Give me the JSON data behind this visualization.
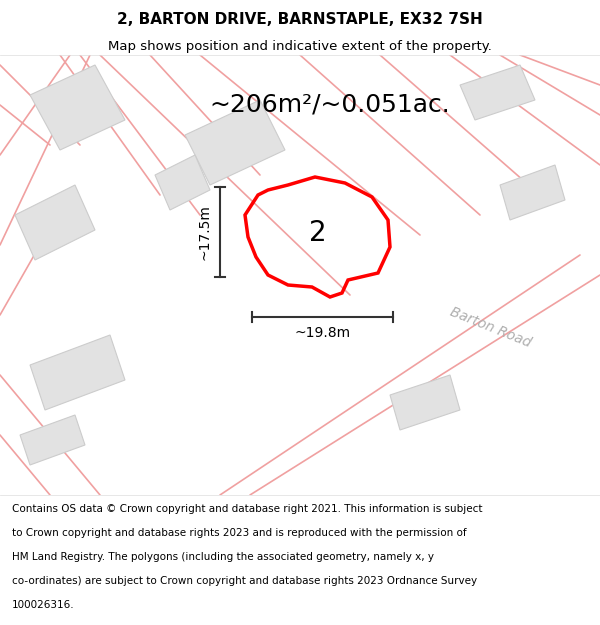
{
  "title": "2, BARTON DRIVE, BARNSTAPLE, EX32 7SH",
  "subtitle": "Map shows position and indicative extent of the property.",
  "area_text": "~206m²/~0.051ac.",
  "dim_width": "~19.8m",
  "dim_height": "~17.5m",
  "plot_number": "2",
  "road_label": "Barton Road",
  "map_bg_color": "#f5f4f2",
  "building_fill": "#e2e2e2",
  "building_edge": "#cccccc",
  "road_line_color": "#f0a0a0",
  "title_fontsize": 11,
  "subtitle_fontsize": 9.5,
  "area_fontsize": 18,
  "dim_fontsize": 10,
  "plot_label_fontsize": 20,
  "road_label_fontsize": 10,
  "footer_fontsize": 7.5,
  "footer_lines": [
    "Contains OS data © Crown copyright and database right 2021. This information is subject",
    "to Crown copyright and database rights 2023 and is reproduced with the permission of",
    "HM Land Registry. The polygons (including the associated geometry, namely x, y",
    "co-ordinates) are subject to Crown copyright and database rights 2023 Ordnance Survey",
    "100026316."
  ]
}
